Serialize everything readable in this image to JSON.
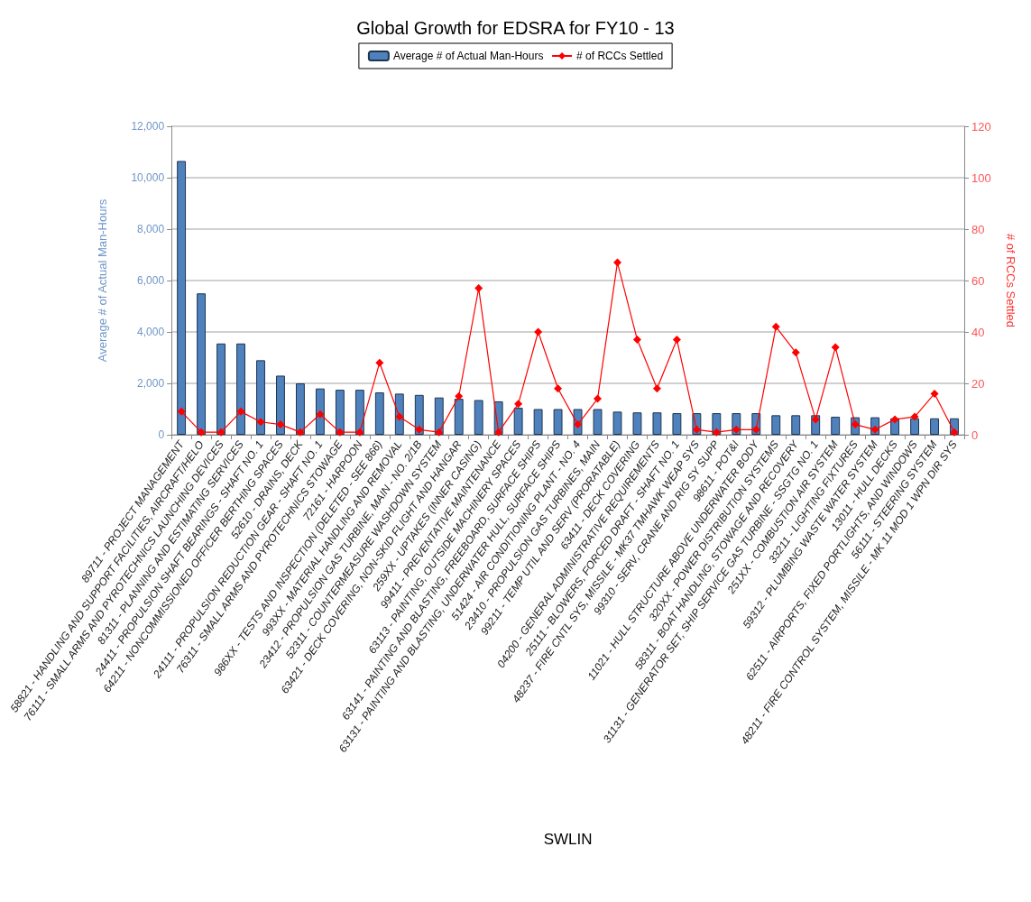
{
  "chart_data": {
    "type": "bar",
    "title": "Global Growth for EDSRA for FY10 - 13",
    "xlabel": "SWLIN",
    "ylabel": "Average # of Actual Man-Hours",
    "y2label": "# of RCCs Settled",
    "categories": [
      "89711 - PROJECT MANAGEMENT",
      "58821 - HANDLING AND SUPPORT FACILITIES, AIRCRAFT/HELO",
      "76111 - SMALL ARMS AND PYROTECHNICS LAUNCHING DEVICES",
      "81311 - PLANNING AND ESTIMATING SERVICES",
      "24411 - PROPULSION SHAFT BEARINGS - SHAFT NO. 1",
      "64211 - NONCOMMISSIONED OFFICER BERTHING SPACES",
      "52610 - DRAINS, DECK",
      "24111 - PROPULSION REDUCTION GEAR - SHAFT NO. 1",
      "76311 - SMALL ARMS AND PYROTECHNICS STOWAGE",
      "72161 - HARPOON",
      "986XX - TESTS AND INSPECTION (DELETED - SEE 866)",
      "993XX - MATERIAL HANDLING AND REMOVAL",
      "23412 - PROPULSION GAS TURBINE, MAIN - NO. 2/1B",
      "52311 - COUNTERMEASURE WASHDOWN SYSTEM",
      "63421 - DECK COVERING, NON-SKID FLIGHT AND HANGAR",
      "259XX - UPTAKES (INNER CASING)",
      "99411 - PREVENTATIVE MAINTENANCE",
      "63113 - PAINTING, OUTSIDE MACHINERY SPACES",
      "63141 - PAINTING AND BLASTING, FREEBOARD, SURFACE SHIPS",
      "63131 - PAINTING AND BLASTING, UNDERWATER HULL, SURFACE SHIPS",
      "51424 - AIR CONDITIONING PLANT - NO. 4",
      "23410 - PROPULSION GAS TURBINES, MAIN",
      "99211 - TEMP UTIL AND SERV (PRORATABLE)",
      "63411 - DECK COVERING",
      "04200 - GENERAL ADMINISTRATIVE REQUIREMENTS",
      "25111 - BLOWERS, FORCED DRAFT - SHAFT NO. 1",
      "48237 - FIRE CNTL SYS, MISSILE - MK37 TMHAWK WEAP SYS",
      "99310 - SERV, CRANE AND RIG SY SUPP",
      "98611 - POT&I",
      "11021 - HULL STRUCTURE ABOVE UNDERWATER BODY",
      "320XX - POWER DISTRIBUTION SYSTEMS",
      "58311 - BOAT HANDLING, STOWAGE AND RECOVERY",
      "31131 - GENERATOR SET, SHIP SERVICE GAS TURBINE - SSGTG NO. 1",
      "251XX - COMBUSTION AIR SYSTEM",
      "33211 - LIGHTING FIXTURES",
      "59312 - PLUMBING WASTE WATER SYSTEM",
      "13011 - HULL DECKS",
      "62511 - AIRPORTS, FIXED PORTLIGHTS, AND WINDOWS",
      "56111 - STEERING SYSTEM",
      "48211 - FIRE CONTROL SYSTEM, MISSILE - MK 11 MOD 1 WPN DIR SYS"
    ],
    "series": [
      {
        "name": "Average # of Actual Man-Hours",
        "color": "#4f81bd",
        "values": [
          10650,
          5500,
          3550,
          3550,
          2900,
          2300,
          2000,
          1800,
          1750,
          1750,
          1650,
          1600,
          1550,
          1450,
          1400,
          1350,
          1300,
          1050,
          1000,
          1000,
          1000,
          1000,
          900,
          870,
          870,
          840,
          840,
          840,
          840,
          840,
          760,
          760,
          760,
          700,
          680,
          680,
          640,
          640,
          640,
          640
        ]
      },
      {
        "name": "# of RCCs Settled",
        "type": "line",
        "axis": "y2",
        "color": "#ff0000",
        "marker": "diamond",
        "values": [
          9,
          1,
          1,
          9,
          5,
          4,
          1,
          8,
          1,
          1,
          28,
          7,
          2,
          1,
          15,
          57,
          1,
          12,
          40,
          18,
          4,
          14,
          67,
          37,
          18,
          37,
          2,
          1,
          2,
          2,
          42,
          32,
          6,
          34,
          4,
          2,
          6,
          7,
          16,
          1
        ]
      }
    ],
    "ylim": [
      0,
      12000
    ],
    "yticks": [
      0,
      {
        "value": 2000,
        "label": "2,000"
      },
      {
        "value": 4000,
        "label": "4,000"
      },
      {
        "value": 6000,
        "label": "6,000"
      },
      {
        "value": 8000,
        "label": "8,000"
      },
      {
        "value": 10000,
        "label": "10,000"
      },
      {
        "value": 12000,
        "label": "12,000"
      }
    ],
    "y2lim": [
      0,
      120
    ],
    "y2ticks": [
      0,
      20,
      40,
      60,
      80,
      100,
      120
    ],
    "grid": "y",
    "legend": "top"
  }
}
